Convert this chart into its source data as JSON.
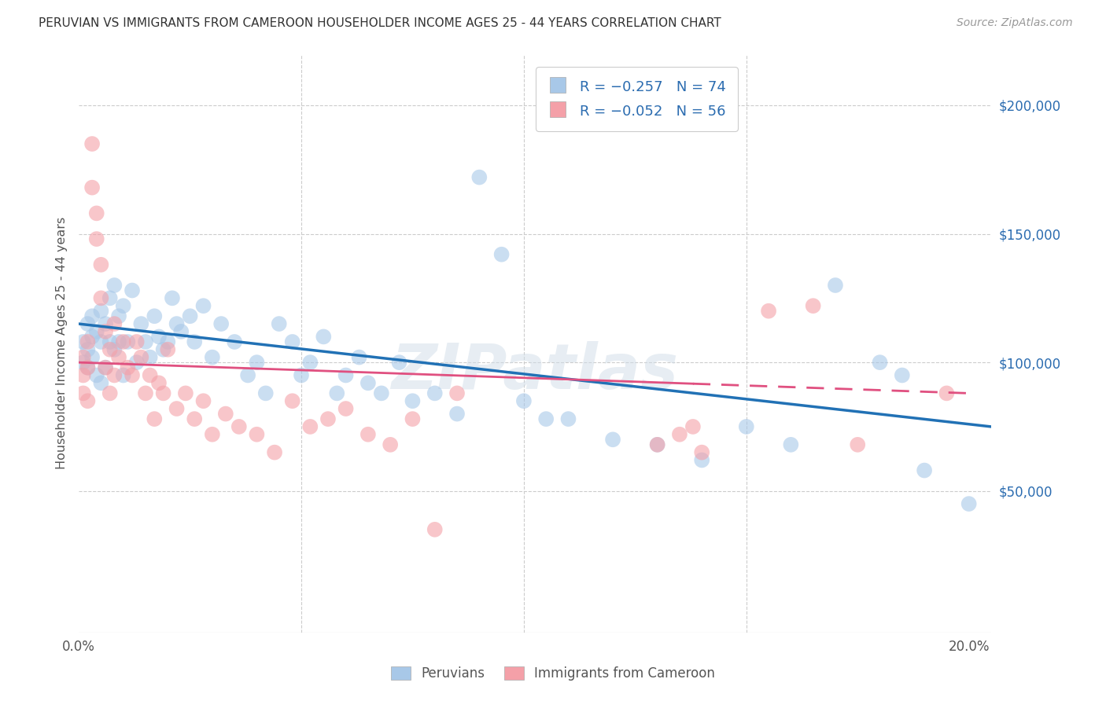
{
  "title": "PERUVIAN VS IMMIGRANTS FROM CAMEROON HOUSEHOLDER INCOME AGES 25 - 44 YEARS CORRELATION CHART",
  "source": "Source: ZipAtlas.com",
  "ylabel": "Householder Income Ages 25 - 44 years",
  "xlim": [
    0.0,
    0.205
  ],
  "ylim": [
    -5000,
    220000
  ],
  "xticks": [
    0.0,
    0.05,
    0.1,
    0.15,
    0.2
  ],
  "xticklabels": [
    "0.0%",
    "",
    "",
    "",
    "20.0%"
  ],
  "yticks_right": [
    50000,
    100000,
    150000,
    200000
  ],
  "yticklabels_right": [
    "$50,000",
    "$100,000",
    "$150,000",
    "$200,000"
  ],
  "legend_label1": "Peruvians",
  "legend_label2": "Immigrants from Cameroon",
  "blue_color": "#a8c8e8",
  "pink_color": "#f4a0a8",
  "blue_line_color": "#2171b5",
  "pink_line_color": "#e05080",
  "background_color": "#ffffff",
  "grid_color": "#cccccc",
  "title_color": "#333333",
  "watermark": "ZIPatlas",
  "blue_scatter_x": [
    0.001,
    0.001,
    0.002,
    0.002,
    0.002,
    0.003,
    0.003,
    0.003,
    0.004,
    0.004,
    0.005,
    0.005,
    0.005,
    0.006,
    0.006,
    0.007,
    0.007,
    0.008,
    0.008,
    0.009,
    0.009,
    0.01,
    0.01,
    0.011,
    0.012,
    0.013,
    0.014,
    0.015,
    0.016,
    0.017,
    0.018,
    0.019,
    0.02,
    0.021,
    0.022,
    0.023,
    0.025,
    0.026,
    0.028,
    0.03,
    0.032,
    0.035,
    0.038,
    0.04,
    0.042,
    0.045,
    0.048,
    0.05,
    0.052,
    0.055,
    0.058,
    0.06,
    0.063,
    0.065,
    0.068,
    0.072,
    0.075,
    0.08,
    0.085,
    0.09,
    0.095,
    0.1,
    0.105,
    0.11,
    0.12,
    0.13,
    0.14,
    0.15,
    0.16,
    0.17,
    0.18,
    0.185,
    0.19,
    0.2
  ],
  "blue_scatter_y": [
    108000,
    100000,
    115000,
    98000,
    105000,
    110000,
    118000,
    102000,
    112000,
    95000,
    120000,
    108000,
    92000,
    115000,
    98000,
    125000,
    108000,
    130000,
    105000,
    118000,
    108000,
    122000,
    95000,
    108000,
    128000,
    100000,
    115000,
    108000,
    102000,
    118000,
    110000,
    105000,
    108000,
    125000,
    115000,
    112000,
    118000,
    108000,
    122000,
    102000,
    115000,
    108000,
    95000,
    100000,
    88000,
    115000,
    108000,
    95000,
    100000,
    110000,
    88000,
    95000,
    102000,
    92000,
    88000,
    100000,
    85000,
    88000,
    80000,
    172000,
    142000,
    85000,
    78000,
    78000,
    70000,
    68000,
    62000,
    75000,
    68000,
    130000,
    100000,
    95000,
    58000,
    45000
  ],
  "pink_scatter_x": [
    0.001,
    0.001,
    0.001,
    0.002,
    0.002,
    0.002,
    0.003,
    0.003,
    0.004,
    0.004,
    0.005,
    0.005,
    0.006,
    0.006,
    0.007,
    0.007,
    0.008,
    0.008,
    0.009,
    0.01,
    0.011,
    0.012,
    0.013,
    0.014,
    0.015,
    0.016,
    0.017,
    0.018,
    0.019,
    0.02,
    0.022,
    0.024,
    0.026,
    0.028,
    0.03,
    0.033,
    0.036,
    0.04,
    0.044,
    0.048,
    0.052,
    0.056,
    0.06,
    0.065,
    0.07,
    0.075,
    0.08,
    0.085,
    0.13,
    0.135,
    0.138,
    0.14,
    0.155,
    0.165,
    0.175,
    0.195
  ],
  "pink_scatter_y": [
    102000,
    95000,
    88000,
    108000,
    98000,
    85000,
    185000,
    168000,
    158000,
    148000,
    138000,
    125000,
    112000,
    98000,
    105000,
    88000,
    115000,
    95000,
    102000,
    108000,
    98000,
    95000,
    108000,
    102000,
    88000,
    95000,
    78000,
    92000,
    88000,
    105000,
    82000,
    88000,
    78000,
    85000,
    72000,
    80000,
    75000,
    72000,
    65000,
    85000,
    75000,
    78000,
    82000,
    72000,
    68000,
    78000,
    35000,
    88000,
    68000,
    72000,
    75000,
    65000,
    120000,
    122000,
    68000,
    88000
  ]
}
